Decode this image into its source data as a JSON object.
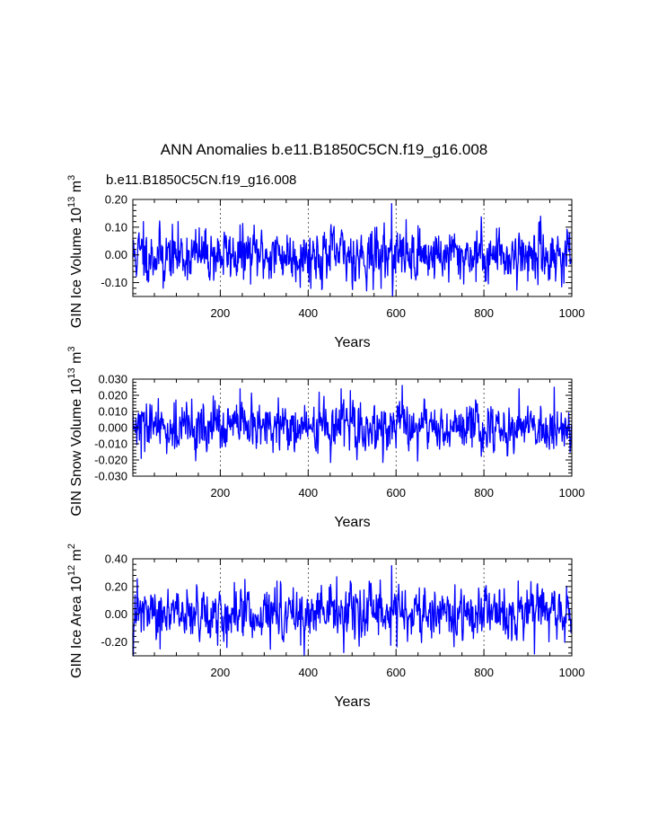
{
  "figure": {
    "title": "ANN Anomalies b.e11.B1850C5CN.f19_g16.008",
    "case_label": "b.e11.B1850C5CN.f19_g16.008",
    "case_color": "#0000ff",
    "series_color": "#0000ff",
    "grid_color": "#000000"
  },
  "chart_data": [
    {
      "type": "line",
      "title": "",
      "xlabel": "Years",
      "ylabel_main": "GIN Ice Volume 10",
      "ylabel_sup1": "13",
      "ylabel_mid": " m",
      "ylabel_sup2": "3",
      "xlim": [
        1,
        1000
      ],
      "ylim": [
        -0.15,
        0.2
      ],
      "xticks": [
        200,
        400,
        600,
        800,
        1000
      ],
      "xtick_labels": [
        "200",
        "400",
        "600",
        "800",
        "1000"
      ],
      "yticks": [
        -0.1,
        0.0,
        0.1,
        0.2
      ],
      "ytick_labels": [
        "-0.10",
        "0.00",
        "0.10",
        "0.20"
      ],
      "grid_x": [
        200,
        400,
        600,
        800
      ],
      "amplitude": 0.045,
      "seed": 11,
      "spikes": [
        {
          "x": 590,
          "y": 0.185
        },
        {
          "x": 548,
          "y": -0.125
        },
        {
          "x": 70,
          "y": -0.12
        },
        {
          "x": 25,
          "y": 0.12
        }
      ],
      "series": [
        {
          "name": "GIN Ice Volume",
          "n_points": 1000
        }
      ]
    },
    {
      "type": "line",
      "title": "",
      "xlabel": "Years",
      "ylabel_main": "GIN Snow Volume 10",
      "ylabel_sup1": "13",
      "ylabel_mid": " m",
      "ylabel_sup2": "3",
      "xlim": [
        1,
        1000
      ],
      "ylim": [
        -0.03,
        0.03
      ],
      "xticks": [
        200,
        400,
        600,
        800,
        1000
      ],
      "xtick_labels": [
        "200",
        "400",
        "600",
        "800",
        "1000"
      ],
      "yticks": [
        -0.03,
        -0.02,
        -0.01,
        0.0,
        0.01,
        0.02,
        0.03
      ],
      "ytick_labels": [
        "-0.030",
        "-0.020",
        "-0.010",
        "0.000",
        "0.010",
        "0.020",
        "0.030"
      ],
      "grid_x": [
        200,
        400,
        600,
        800
      ],
      "amplitude": 0.007,
      "seed": 29,
      "spikes": [
        {
          "x": 245,
          "y": 0.024
        },
        {
          "x": 475,
          "y": 0.024
        },
        {
          "x": 960,
          "y": 0.025
        },
        {
          "x": 880,
          "y": 0.024
        },
        {
          "x": 20,
          "y": -0.019
        }
      ],
      "series": [
        {
          "name": "GIN Snow Volume",
          "n_points": 1000
        }
      ]
    },
    {
      "type": "line",
      "title": "",
      "xlabel": "Years",
      "ylabel_main": "GIN Ice Area 10",
      "ylabel_sup1": "12",
      "ylabel_mid": " m",
      "ylabel_sup2": "2",
      "xlim": [
        1,
        1000
      ],
      "ylim": [
        -0.3,
        0.4
      ],
      "xticks": [
        200,
        400,
        600,
        800,
        1000
      ],
      "xtick_labels": [
        "200",
        "400",
        "600",
        "800",
        "1000"
      ],
      "yticks": [
        -0.2,
        0.0,
        0.2,
        0.4
      ],
      "ytick_labels": [
        "-0.20",
        "0.00",
        "0.20",
        "0.40"
      ],
      "grid_x": [
        200,
        400,
        600,
        800
      ],
      "amplitude": 0.085,
      "seed": 47,
      "spikes": [
        {
          "x": 590,
          "y": 0.35
        },
        {
          "x": 465,
          "y": 0.27
        },
        {
          "x": 215,
          "y": -0.24
        },
        {
          "x": 63,
          "y": -0.25
        }
      ],
      "series": [
        {
          "name": "GIN Ice Area",
          "n_points": 1000
        }
      ]
    }
  ]
}
